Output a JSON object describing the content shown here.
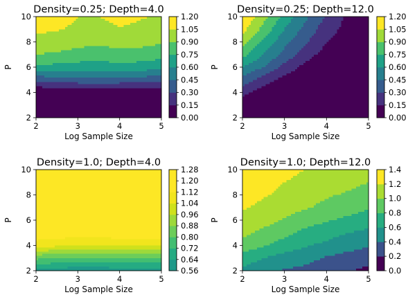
{
  "chart_data": [
    {
      "type": "contour",
      "title": "Density=0.25; Depth=4.0",
      "xlabel": "Log Sample Size",
      "ylabel": "P",
      "xlim": [
        2,
        5
      ],
      "ylim": [
        2,
        10
      ],
      "xticks": [
        "2",
        "3",
        "4",
        "5"
      ],
      "yticks": [
        "2",
        "4",
        "6",
        "8",
        "10"
      ],
      "colorbar": {
        "levels": [
          0.0,
          0.15,
          0.3,
          0.45,
          0.6,
          0.75,
          0.9,
          1.05,
          1.2
        ],
        "tick_labels": [
          "0.00",
          "0.15",
          "0.30",
          "0.45",
          "0.60",
          "0.75",
          "0.90",
          "1.05",
          "1.20"
        ],
        "colors": [
          "#440154",
          "#46327e",
          "#365c8d",
          "#277f8e",
          "#1fa187",
          "#4ac16d",
          "#a0da39",
          "#fde725"
        ]
      },
      "x": [
        2.0,
        2.5,
        3.0,
        3.5,
        4.0,
        4.5,
        5.0
      ],
      "y": [
        2,
        3,
        4,
        5,
        6,
        7,
        8,
        9,
        10
      ],
      "z": [
        [
          0.0,
          0.0,
          0.0,
          0.0,
          0.0,
          0.0,
          0.0
        ],
        [
          0.0,
          0.0,
          0.0,
          0.0,
          0.0,
          0.0,
          0.0
        ],
        [
          0.0,
          0.0,
          0.0,
          0.0,
          0.0,
          0.0,
          0.0
        ],
        [
          0.35,
          0.38,
          0.4,
          0.4,
          0.4,
          0.38,
          0.36
        ],
        [
          0.72,
          0.7,
          0.68,
          0.68,
          0.7,
          0.68,
          0.66
        ],
        [
          0.9,
          0.88,
          0.85,
          0.82,
          0.85,
          0.84,
          0.8
        ],
        [
          1.0,
          0.98,
          0.95,
          0.93,
          0.96,
          0.95,
          0.92
        ],
        [
          1.08,
          1.06,
          1.02,
          1.0,
          1.04,
          1.02,
          1.0
        ],
        [
          1.15,
          1.12,
          1.05,
          1.05,
          1.1,
          1.06,
          1.04
        ]
      ]
    },
    {
      "type": "contour",
      "title": "Density=0.25; Depth=12.0",
      "xlabel": "Log Sample Size",
      "ylabel": "P",
      "xlim": [
        2,
        5
      ],
      "ylim": [
        2,
        10
      ],
      "xticks": [
        "2",
        "3",
        "4",
        "5"
      ],
      "yticks": [
        "2",
        "4",
        "6",
        "8",
        "10"
      ],
      "colorbar": {
        "levels": [
          0.0,
          0.15,
          0.3,
          0.45,
          0.6,
          0.75,
          0.9,
          1.05,
          1.2
        ],
        "tick_labels": [
          "0.00",
          "0.15",
          "0.30",
          "0.45",
          "0.60",
          "0.75",
          "0.90",
          "1.05",
          "1.20"
        ],
        "colors": [
          "#440154",
          "#46327e",
          "#365c8d",
          "#277f8e",
          "#1fa187",
          "#4ac16d",
          "#a0da39",
          "#fde725"
        ]
      },
      "x": [
        2.0,
        2.5,
        3.0,
        3.5,
        4.0,
        4.5,
        5.0
      ],
      "y": [
        2,
        3,
        4,
        5,
        6,
        7,
        8,
        9,
        10
      ],
      "z": [
        [
          0.0,
          0.0,
          0.0,
          0.0,
          0.0,
          0.0,
          0.0
        ],
        [
          0.05,
          0.0,
          0.0,
          0.0,
          0.0,
          0.0,
          0.0
        ],
        [
          0.2,
          0.08,
          0.0,
          0.0,
          0.0,
          0.0,
          0.0
        ],
        [
          0.4,
          0.22,
          0.1,
          0.0,
          0.0,
          0.0,
          0.0
        ],
        [
          0.6,
          0.45,
          0.25,
          0.1,
          0.0,
          0.0,
          0.0
        ],
        [
          0.8,
          0.6,
          0.4,
          0.22,
          0.08,
          0.0,
          0.0
        ],
        [
          0.95,
          0.72,
          0.5,
          0.32,
          0.16,
          0.05,
          0.0
        ],
        [
          1.1,
          0.85,
          0.6,
          0.4,
          0.22,
          0.1,
          0.0
        ],
        [
          1.2,
          0.95,
          0.7,
          0.48,
          0.28,
          0.12,
          0.0
        ]
      ]
    },
    {
      "type": "contour",
      "title": "Density=1.0; Depth=4.0",
      "xlabel": "Log Sample Size",
      "ylabel": "P",
      "xlim": [
        2,
        5
      ],
      "ylim": [
        2,
        10
      ],
      "xticks": [
        "2",
        "3",
        "4",
        "5"
      ],
      "yticks": [
        "2",
        "4",
        "6",
        "8",
        "10"
      ],
      "colorbar": {
        "levels": [
          0.56,
          0.64,
          0.72,
          0.8,
          0.88,
          0.96,
          1.04,
          1.12,
          1.2,
          1.28
        ],
        "tick_labels": [
          "0.56",
          "0.64",
          "0.72",
          "0.80",
          "0.88",
          "0.96",
          "1.04",
          "1.12",
          "1.20",
          "1.28"
        ],
        "colors": [
          "#1f9a8a",
          "#25ab82",
          "#42be71",
          "#6ccd5a",
          "#9dd93b",
          "#cfe11c",
          "#f1e51d",
          "#fde725",
          "#fde725"
        ]
      },
      "x": [
        2.0,
        2.5,
        3.0,
        3.5,
        4.0,
        4.5,
        5.0
      ],
      "y": [
        2,
        3,
        4,
        5,
        6,
        7,
        8,
        9,
        10
      ],
      "z": [
        [
          0.6,
          0.6,
          0.58,
          0.58,
          0.6,
          0.6,
          0.6
        ],
        [
          0.82,
          0.8,
          0.78,
          0.78,
          0.8,
          0.8,
          0.8
        ],
        [
          1.08,
          1.06,
          1.05,
          1.05,
          1.06,
          1.06,
          1.06
        ],
        [
          1.18,
          1.17,
          1.16,
          1.16,
          1.17,
          1.17,
          1.17
        ],
        [
          1.22,
          1.22,
          1.21,
          1.21,
          1.22,
          1.22,
          1.22
        ],
        [
          1.24,
          1.24,
          1.23,
          1.23,
          1.24,
          1.24,
          1.24
        ],
        [
          1.25,
          1.25,
          1.24,
          1.24,
          1.25,
          1.25,
          1.25
        ],
        [
          1.25,
          1.25,
          1.24,
          1.24,
          1.25,
          1.25,
          1.25
        ],
        [
          1.25,
          1.25,
          1.24,
          1.24,
          1.25,
          1.25,
          1.25
        ]
      ]
    },
    {
      "type": "contour",
      "title": "Density=1.0; Depth=12.0",
      "xlabel": "Log Sample Size",
      "ylabel": "P",
      "xlim": [
        2,
        5
      ],
      "ylim": [
        2,
        10
      ],
      "xticks": [
        "2",
        "3",
        "4",
        "5"
      ],
      "yticks": [
        "2",
        "4",
        "6",
        "8",
        "10"
      ],
      "colorbar": {
        "levels": [
          0.0,
          0.2,
          0.4,
          0.6,
          0.8,
          1.0,
          1.2,
          1.4
        ],
        "tick_labels": [
          "0.0",
          "0.2",
          "0.4",
          "0.6",
          "0.8",
          "1.0",
          "1.2",
          "1.4"
        ],
        "colors": [
          "#440154",
          "#3b528b",
          "#21918c",
          "#27ad81",
          "#5ec962",
          "#aadc32",
          "#fde725"
        ]
      },
      "x": [
        2.0,
        2.5,
        3.0,
        3.5,
        4.0,
        4.5,
        5.0
      ],
      "y": [
        2,
        3,
        4,
        5,
        6,
        7,
        8,
        9,
        10
      ],
      "z": [
        [
          0.55,
          0.45,
          0.38,
          0.35,
          0.3,
          0.22,
          0.15
        ],
        [
          0.72,
          0.6,
          0.52,
          0.46,
          0.38,
          0.32,
          0.28
        ],
        [
          0.92,
          0.82,
          0.72,
          0.62,
          0.55,
          0.48,
          0.42
        ],
        [
          1.05,
          0.95,
          0.85,
          0.75,
          0.68,
          0.6,
          0.55
        ],
        [
          1.15,
          1.08,
          0.98,
          0.88,
          0.82,
          0.76,
          0.7
        ],
        [
          1.22,
          1.15,
          1.08,
          1.02,
          0.95,
          0.88,
          0.82
        ],
        [
          1.3,
          1.22,
          1.15,
          1.08,
          1.02,
          0.98,
          0.92
        ],
        [
          1.35,
          1.28,
          1.2,
          1.15,
          1.1,
          1.05,
          1.0
        ],
        [
          1.38,
          1.32,
          1.25,
          1.2,
          1.15,
          1.1,
          1.05
        ]
      ]
    }
  ]
}
